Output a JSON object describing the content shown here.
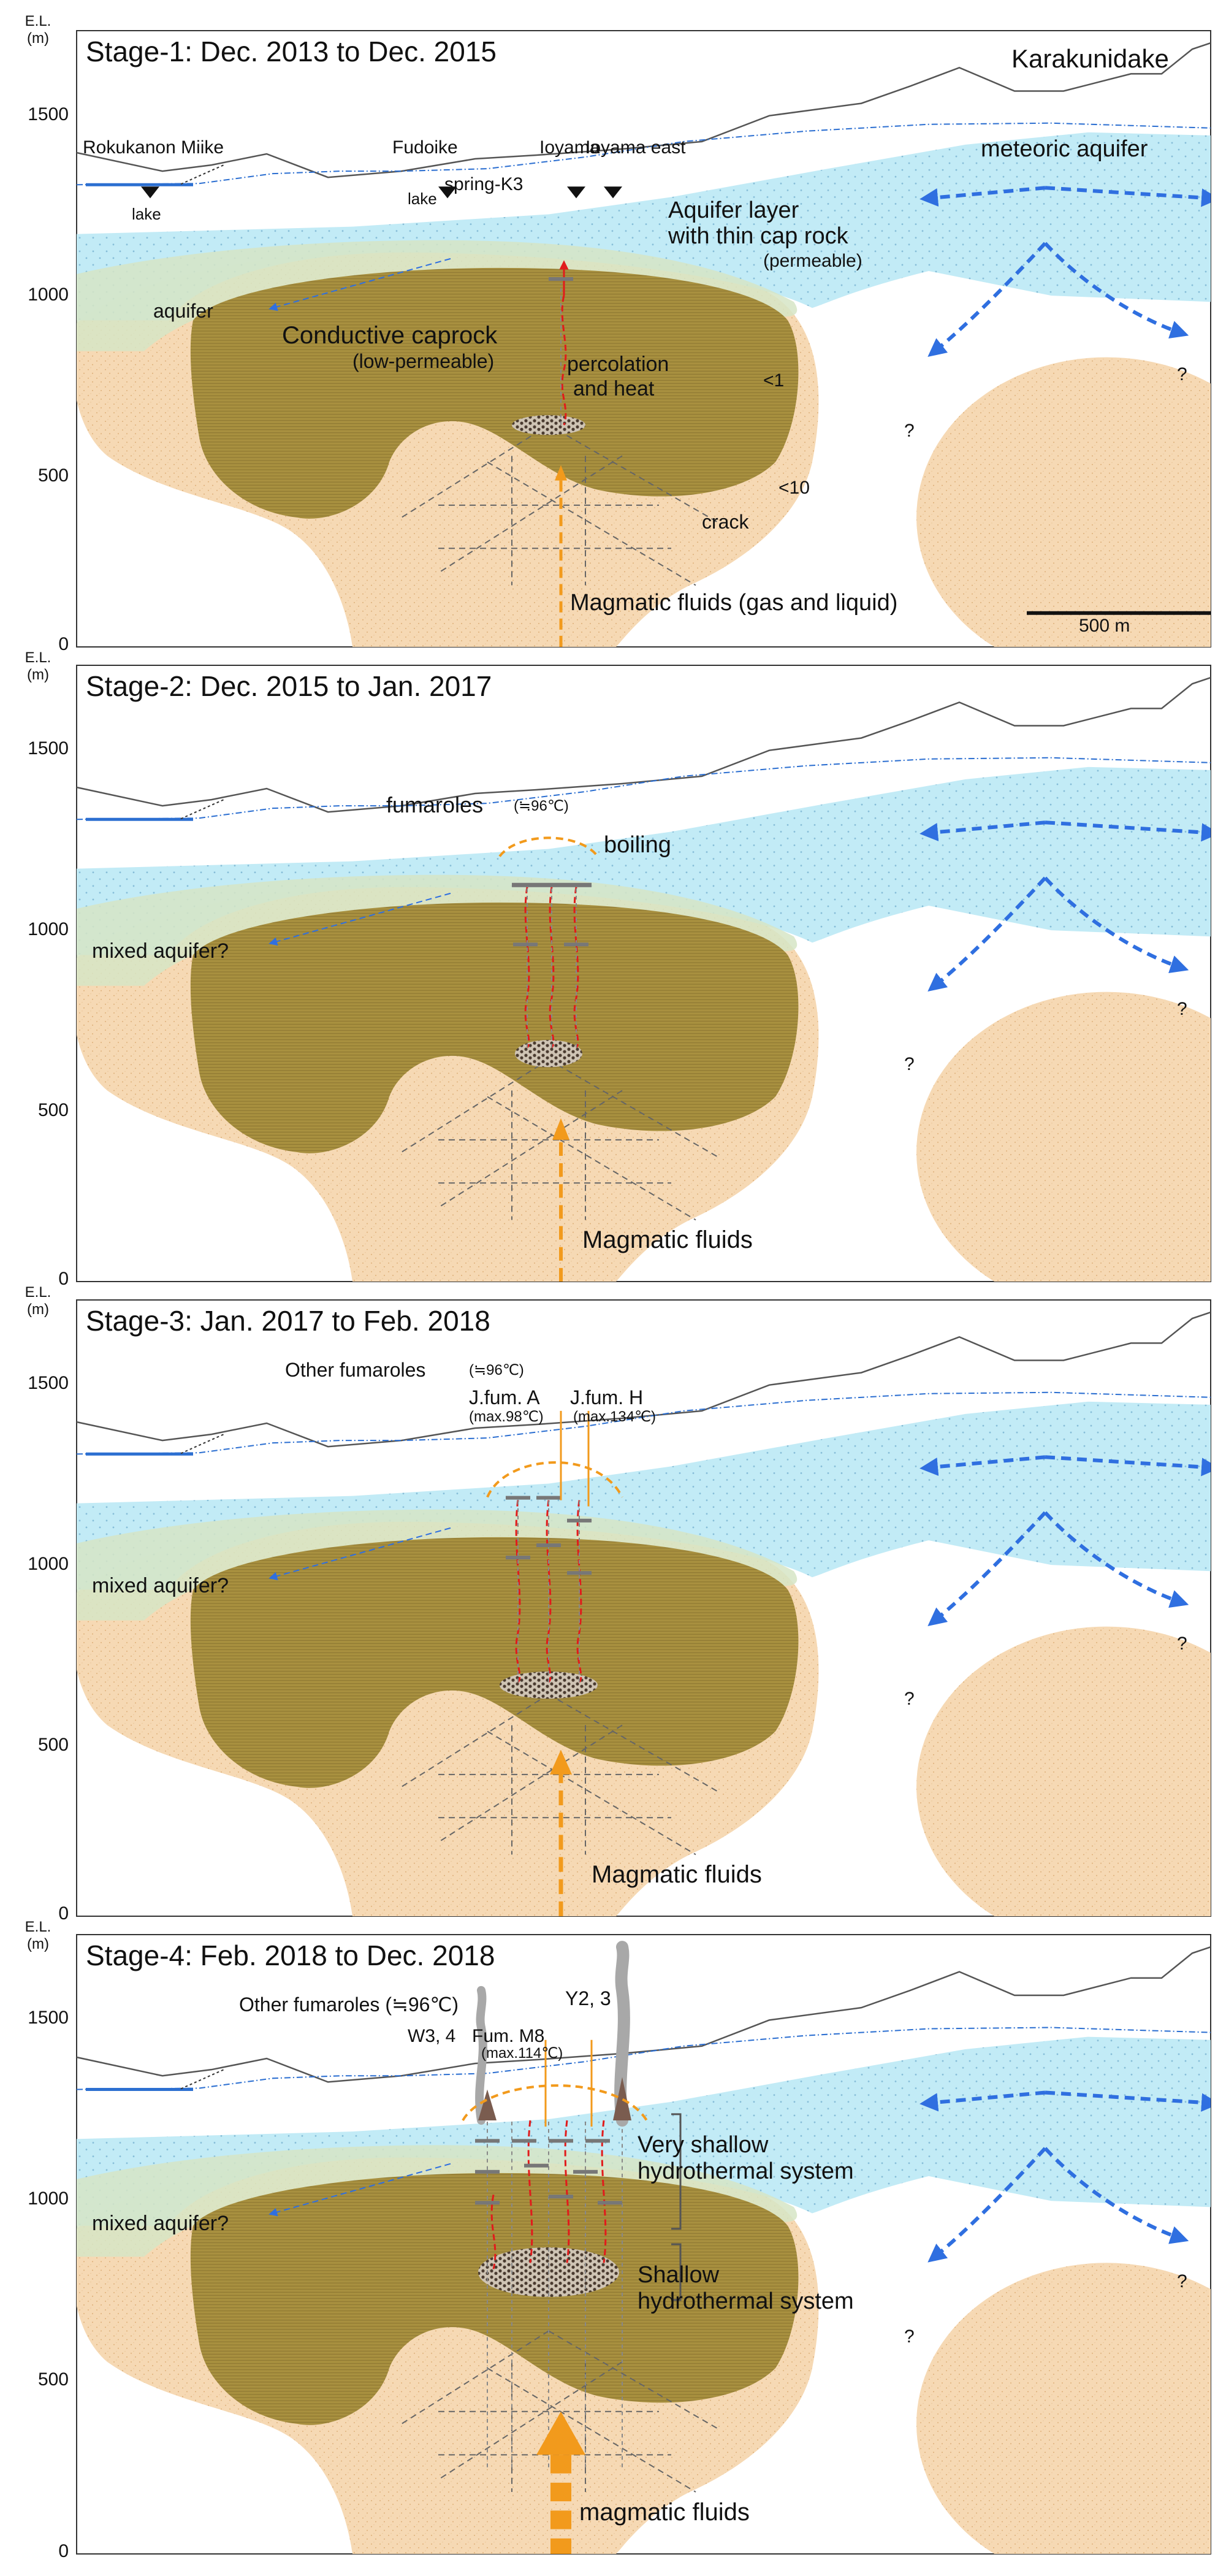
{
  "axis": {
    "unit_top": "E.L.",
    "unit_bottom": "(m)",
    "ticks": [
      "1500",
      "1000",
      "500",
      "0"
    ]
  },
  "colors": {
    "meteoric_aquifer": "#bfeaf5",
    "aquifer_dots": "#7fb9d6",
    "mixed_aquifer": "#d6e5c6",
    "volcanic_body": "#f6d9b4",
    "caprock": "#a38a3c",
    "topography": "#555555",
    "water_table": "#2c6fd1",
    "flow_arrow": "#2f6fe0",
    "magmatic_arrow": "#f29a1c",
    "heat_line": "#e11b1b",
    "crack": "#666666",
    "steam": "#a8a8a8"
  },
  "stages": [
    {
      "title": "Stage-1: Dec. 2013 to Dec. 2015",
      "labels": {
        "karakunidake": "Karakunidake",
        "rokukanon": "Rokukanon Miike",
        "fudoike": "Fudoike",
        "ioyama": "Ioyama",
        "ioyama_east": "Ioyama east",
        "spring": "spring-K3",
        "lake_left": "lake",
        "lake_mid": "lake",
        "meteoric": "meteoric aquifer",
        "aquifer_layer_1": "Aquifer layer",
        "aquifer_layer_2": "with thin cap rock",
        "aquifer_layer_3": "(permeable)",
        "aquifer": "aquifer",
        "caprock_1": "Conductive caprock",
        "caprock_2": "(low-permeable)",
        "percolation_1": "percolation",
        "percolation_2": "and heat",
        "resist_1": "<1",
        "resist_10": "<10",
        "crack": "crack",
        "magmatic": "Magmatic fluids (gas and liquid)",
        "scale": "500 m",
        "q1": "?",
        "q2": "?"
      }
    },
    {
      "title": "Stage-2: Dec. 2015 to Jan. 2017",
      "labels": {
        "fumaroles": "fumaroles",
        "fumaroles_temp": "(≒96℃)",
        "boiling": "boiling",
        "mixed": "mixed aquifer?",
        "magmatic": "Magmatic fluids",
        "q1": "?",
        "q2": "?"
      }
    },
    {
      "title": "Stage-3: Jan. 2017 to Feb. 2018",
      "labels": {
        "other_fum": "Other fumaroles",
        "other_fum_temp": "(≒96℃)",
        "jfum_a": "J.fum. A",
        "jfum_a_temp": "(max.98℃)",
        "jfum_h": "J.fum. H",
        "jfum_h_temp": "(max.134℃)",
        "mixed": "mixed aquifer?",
        "magmatic": "Magmatic fluids",
        "q1": "?",
        "q2": "?"
      }
    },
    {
      "title": "Stage-4: Feb. 2018 to Dec. 2018",
      "labels": {
        "other_fum": "Other fumaroles (≒96℃)",
        "y2": "Y2, 3",
        "w3": "W3, 4",
        "fum_m8": "Fum. M8",
        "fum_m8_temp": "(max.114℃)",
        "very_shallow_1": "Very shallow",
        "very_shallow_2": "hydrothermal system",
        "shallow_1": "Shallow",
        "shallow_2": "hydrothermal system",
        "mixed": "mixed aquifer?",
        "magmatic": "magmatic fluids",
        "q1": "?",
        "q2": "?"
      }
    }
  ]
}
